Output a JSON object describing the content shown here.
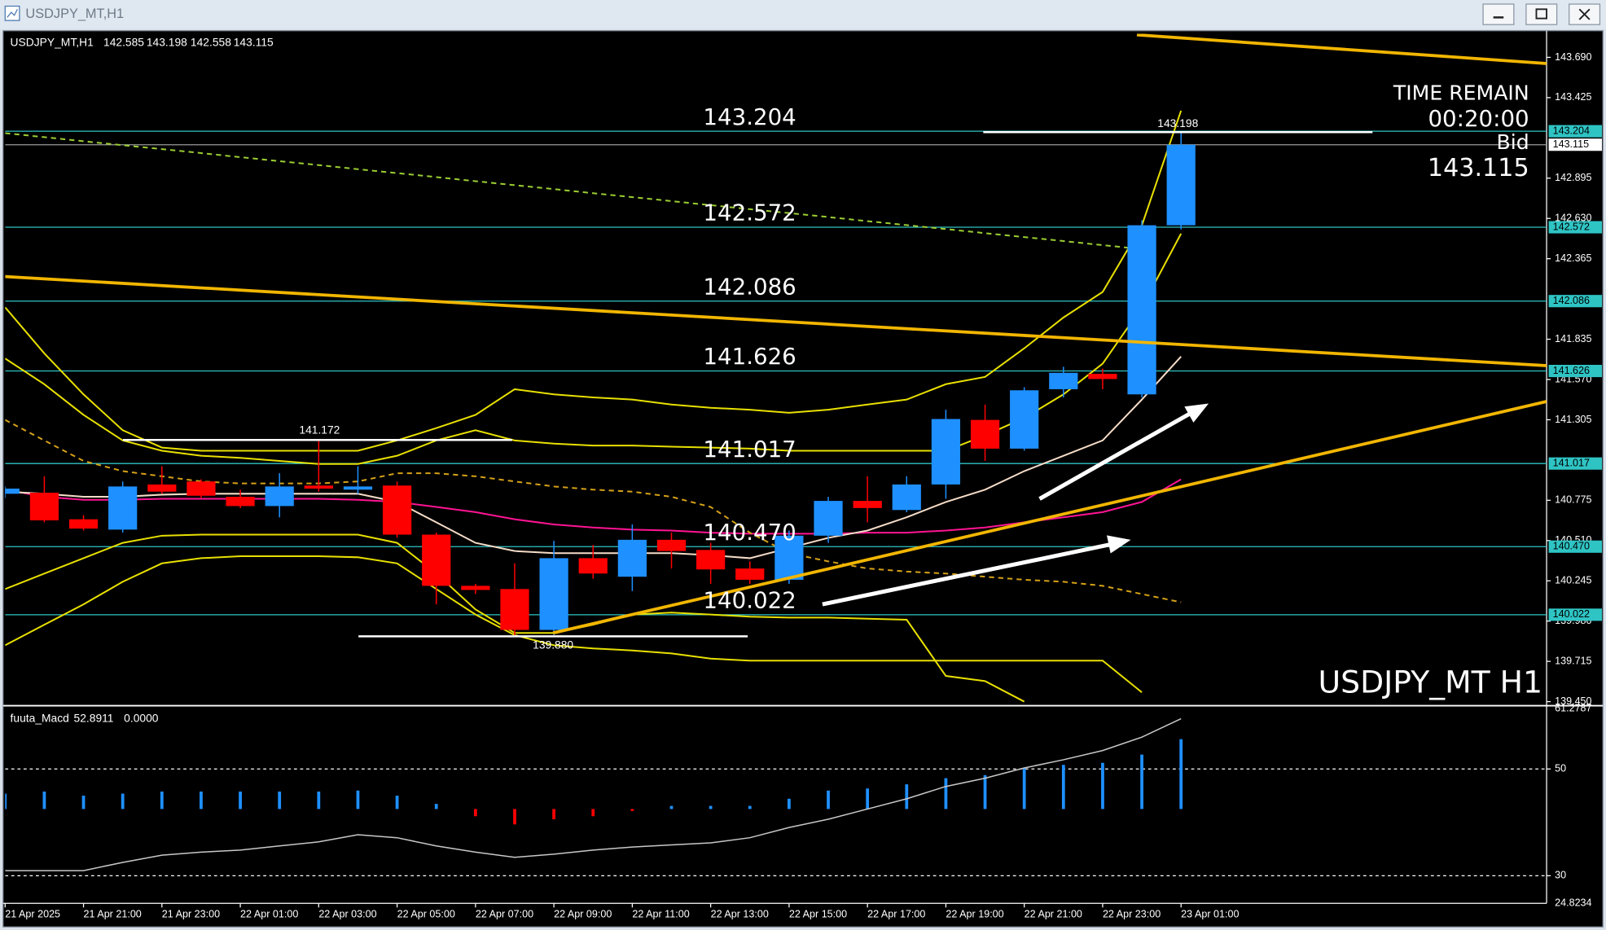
{
  "window": {
    "title": "USDJPY_MT,H1"
  },
  "chart_data": [
    {
      "type": "candlestick",
      "symbol": "USDJPY_MT,H1",
      "watermark": "USDJPY_MT H1",
      "info": {
        "time_remain_label": "TIME REMAIN",
        "time_remain": "00:20:00",
        "bid_label": "Bid"
      },
      "categories": [
        "21 Apr 2025",
        null,
        "21 Apr 21:00",
        null,
        "21 Apr 23:00",
        null,
        "22 Apr 01:00",
        null,
        "22 Apr 03:00",
        null,
        "22 Apr 05:00",
        null,
        "22 Apr 07:00",
        null,
        "22 Apr 09:00",
        null,
        "22 Apr 11:00",
        null,
        "22 Apr 13:00",
        null,
        "22 Apr 15:00",
        null,
        "22 Apr 17:00",
        null,
        "22 Apr 19:00",
        null,
        "22 Apr 21:00",
        null,
        "22 Apr 23:00",
        null,
        "23 Apr 01:00"
      ],
      "open": [
        140.818,
        140.825,
        140.65,
        140.582,
        140.879,
        140.899,
        140.798,
        140.737,
        140.872,
        140.845,
        140.872,
        140.549,
        140.212,
        140.191,
        139.922,
        140.394,
        140.272,
        140.515,
        140.448,
        140.326,
        140.252,
        140.542,
        140.771,
        140.711,
        140.879,
        141.304,
        141.115,
        141.506,
        141.607,
        141.472,
        142.585
      ],
      "high": [
        140.865,
        140.933,
        140.677,
        140.899,
        140.999,
        140.913,
        140.845,
        140.953,
        141.172,
        140.999,
        140.899,
        140.562,
        140.225,
        140.36,
        140.508,
        140.481,
        140.616,
        140.562,
        140.495,
        140.373,
        140.576,
        140.798,
        140.933,
        140.933,
        141.371,
        141.405,
        141.519,
        141.654,
        141.641,
        142.618,
        143.198
      ],
      "low": [
        140.79,
        140.63,
        140.576,
        140.562,
        140.818,
        140.791,
        140.724,
        140.663,
        140.832,
        140.818,
        140.528,
        140.09,
        140.158,
        139.88,
        139.888,
        140.259,
        140.178,
        140.326,
        140.225,
        140.225,
        140.225,
        140.495,
        140.63,
        140.697,
        140.785,
        141.034,
        141.102,
        141.452,
        141.506,
        141.452,
        142.558
      ],
      "close": [
        140.852,
        140.643,
        140.589,
        140.866,
        140.832,
        140.805,
        140.737,
        140.866,
        140.852,
        140.866,
        140.549,
        140.212,
        140.185,
        139.922,
        140.394,
        140.293,
        140.515,
        140.441,
        140.32,
        140.252,
        140.542,
        140.771,
        140.724,
        140.879,
        141.31,
        141.115,
        141.499,
        141.614,
        141.573,
        142.585,
        143.115
      ],
      "up_color": "#1e90ff",
      "down_color": "#ff0000",
      "overlays": [
        {
          "color": "#e8e000",
          "style": "solid",
          "values": [
            142.045,
            141.742,
            141.472,
            141.236,
            141.122,
            141.101,
            141.101,
            141.101,
            141.101,
            141.101,
            141.169,
            141.25,
            141.337,
            141.506,
            141.472,
            141.452,
            141.438,
            141.405,
            141.384,
            141.371,
            141.351,
            141.371,
            141.405,
            141.438,
            141.539,
            141.587,
            141.775,
            141.978,
            142.146,
            142.584,
            143.339
          ]
        },
        {
          "color": "#e8e000",
          "style": "solid",
          "values": [
            141.708,
            141.539,
            141.337,
            141.169,
            141.101,
            141.068,
            141.054,
            141.034,
            141.014,
            141.014,
            141.068,
            141.169,
            141.236,
            141.169,
            141.148,
            141.135,
            141.135,
            141.128,
            141.122,
            141.115,
            141.101,
            141.101,
            141.101,
            141.101,
            141.101,
            141.202,
            141.317,
            141.472,
            141.674,
            142.045,
            142.53
          ]
        },
        {
          "color": "#e8e000",
          "style": "solid",
          "values": [
            140.191,
            140.293,
            140.394,
            140.495,
            140.542,
            140.549,
            140.549,
            140.549,
            140.549,
            140.549,
            140.495,
            140.293,
            140.057,
            139.902,
            139.902,
            139.956,
            140.023,
            140.036,
            140.023,
            140.009,
            140.003,
            140.003,
            139.996,
            139.989,
            139.619,
            139.585,
            139.45,
            null,
            null,
            null,
            null
          ]
        },
        {
          "color": "#e8e000",
          "style": "solid",
          "values": [
            139.821,
            139.956,
            140.09,
            140.239,
            140.36,
            140.394,
            140.407,
            140.407,
            140.407,
            140.4,
            140.36,
            140.191,
            140.023,
            139.888,
            139.821,
            139.8,
            139.787,
            139.767,
            139.733,
            139.72,
            139.72,
            139.72,
            139.72,
            139.72,
            139.72,
            139.72,
            139.72,
            139.72,
            139.72,
            139.511,
            null
          ]
        },
        {
          "color": "#ff1493",
          "style": "solid",
          "values": [
            140.845,
            140.798,
            140.778,
            140.778,
            140.785,
            140.785,
            140.785,
            140.785,
            140.785,
            140.778,
            140.764,
            140.731,
            140.697,
            140.65,
            140.616,
            140.596,
            140.582,
            140.576,
            140.562,
            140.555,
            140.555,
            140.555,
            140.562,
            140.562,
            140.576,
            140.596,
            140.63,
            140.663,
            140.697,
            140.764,
            140.913
          ]
        },
        {
          "color": "#f5dcc8",
          "style": "solid",
          "values": [
            140.832,
            140.818,
            140.798,
            140.798,
            140.812,
            140.818,
            140.818,
            140.818,
            140.818,
            140.818,
            140.764,
            140.63,
            140.495,
            140.441,
            140.427,
            140.427,
            140.427,
            140.427,
            140.414,
            140.394,
            140.461,
            140.528,
            140.576,
            140.663,
            140.764,
            140.845,
            140.967,
            141.068,
            141.169,
            141.438,
            141.721
          ]
        },
        {
          "color": "#d4a017",
          "style": "dashed",
          "values": [
            141.304,
            141.169,
            141.034,
            140.967,
            140.933,
            140.899,
            140.886,
            140.886,
            140.886,
            140.899,
            140.953,
            140.953,
            140.933,
            140.899,
            140.866,
            140.845,
            140.832,
            140.798,
            140.731,
            140.562,
            140.427,
            140.373,
            140.326,
            140.306,
            140.293,
            140.272,
            140.252,
            140.239,
            140.212,
            140.158,
            140.104
          ]
        },
        {
          "color": "#9acd32",
          "style": "dashed",
          "values": [
            143.191,
            143.165,
            143.138,
            143.112,
            143.086,
            143.06,
            143.033,
            143.007,
            142.981,
            142.954,
            142.928,
            142.902,
            142.875,
            142.849,
            142.823,
            142.796,
            142.77,
            142.744,
            142.717,
            142.691,
            142.665,
            142.639,
            142.612,
            142.586,
            142.56,
            142.533,
            142.507,
            142.481,
            142.454,
            142.428,
            null
          ]
        }
      ],
      "levels": [
        143.204,
        142.572,
        142.086,
        141.626,
        141.017,
        {
          "value": 140.47,
          "label": "140.470"
        },
        140.022
      ],
      "level_color": "#2fc4c4",
      "annotations": [
        {
          "value": 141.172,
          "label": "141.172"
        },
        {
          "value": 139.88,
          "label": "139.880"
        },
        {
          "value": 143.198,
          "label": "143.198"
        }
      ],
      "ylim": [
        139.43,
        143.845
      ],
      "yticks": [
        {
          "value": 143.69,
          "label": "143.690"
        },
        143.425,
        142.895,
        {
          "value": 142.63,
          "label": "142.630"
        },
        142.365,
        141.835,
        {
          "value": 141.57,
          "label": "141.570"
        },
        141.305,
        140.775,
        {
          "value": 140.51,
          "label": "140.510"
        },
        140.245,
        {
          "value": 139.98,
          "label": "139.980"
        },
        139.715,
        {
          "value": 139.45,
          "label": "139.450"
        }
      ]
    },
    {
      "type": "macd",
      "label": "fuuta_Macd",
      "readout": [
        52.8911,
        {
          "value": 0,
          "label": "0.0000"
        }
      ],
      "histogram": [
        45.38,
        45.77,
        45.0,
        45.38,
        45.77,
        45.77,
        45.77,
        45.77,
        45.77,
        45.96,
        45.0,
        43.46,
        41.15,
        39.62,
        40.58,
        41.15,
        42.12,
        43.08,
        43.08,
        43.08,
        44.42,
        45.96,
        46.35,
        47.12,
        48.27,
        48.85,
        50.19,
        50.77,
        51.15,
        52.69,
        55.58
      ],
      "histogram_base": 42.5,
      "up_color": "#1e90ff",
      "down_color": "#ff0000",
      "signal": [
        30.96,
        30.96,
        30.96,
        32.5,
        33.85,
        34.42,
        34.81,
        35.58,
        36.35,
        37.69,
        37.12,
        35.58,
        34.42,
        33.46,
        34.04,
        34.81,
        35.38,
        35.77,
        36.15,
        37.12,
        39.04,
        40.58,
        42.5,
        44.42,
        46.73,
        48.27,
        50.19,
        51.73,
        53.46,
        55.96,
        59.42
      ],
      "signal_color": "#c8c8c8",
      "ylim": [
        24.8234,
        61.2787
      ],
      "yticks": [
        61.2787,
        50,
        30,
        24.8234
      ]
    }
  ]
}
